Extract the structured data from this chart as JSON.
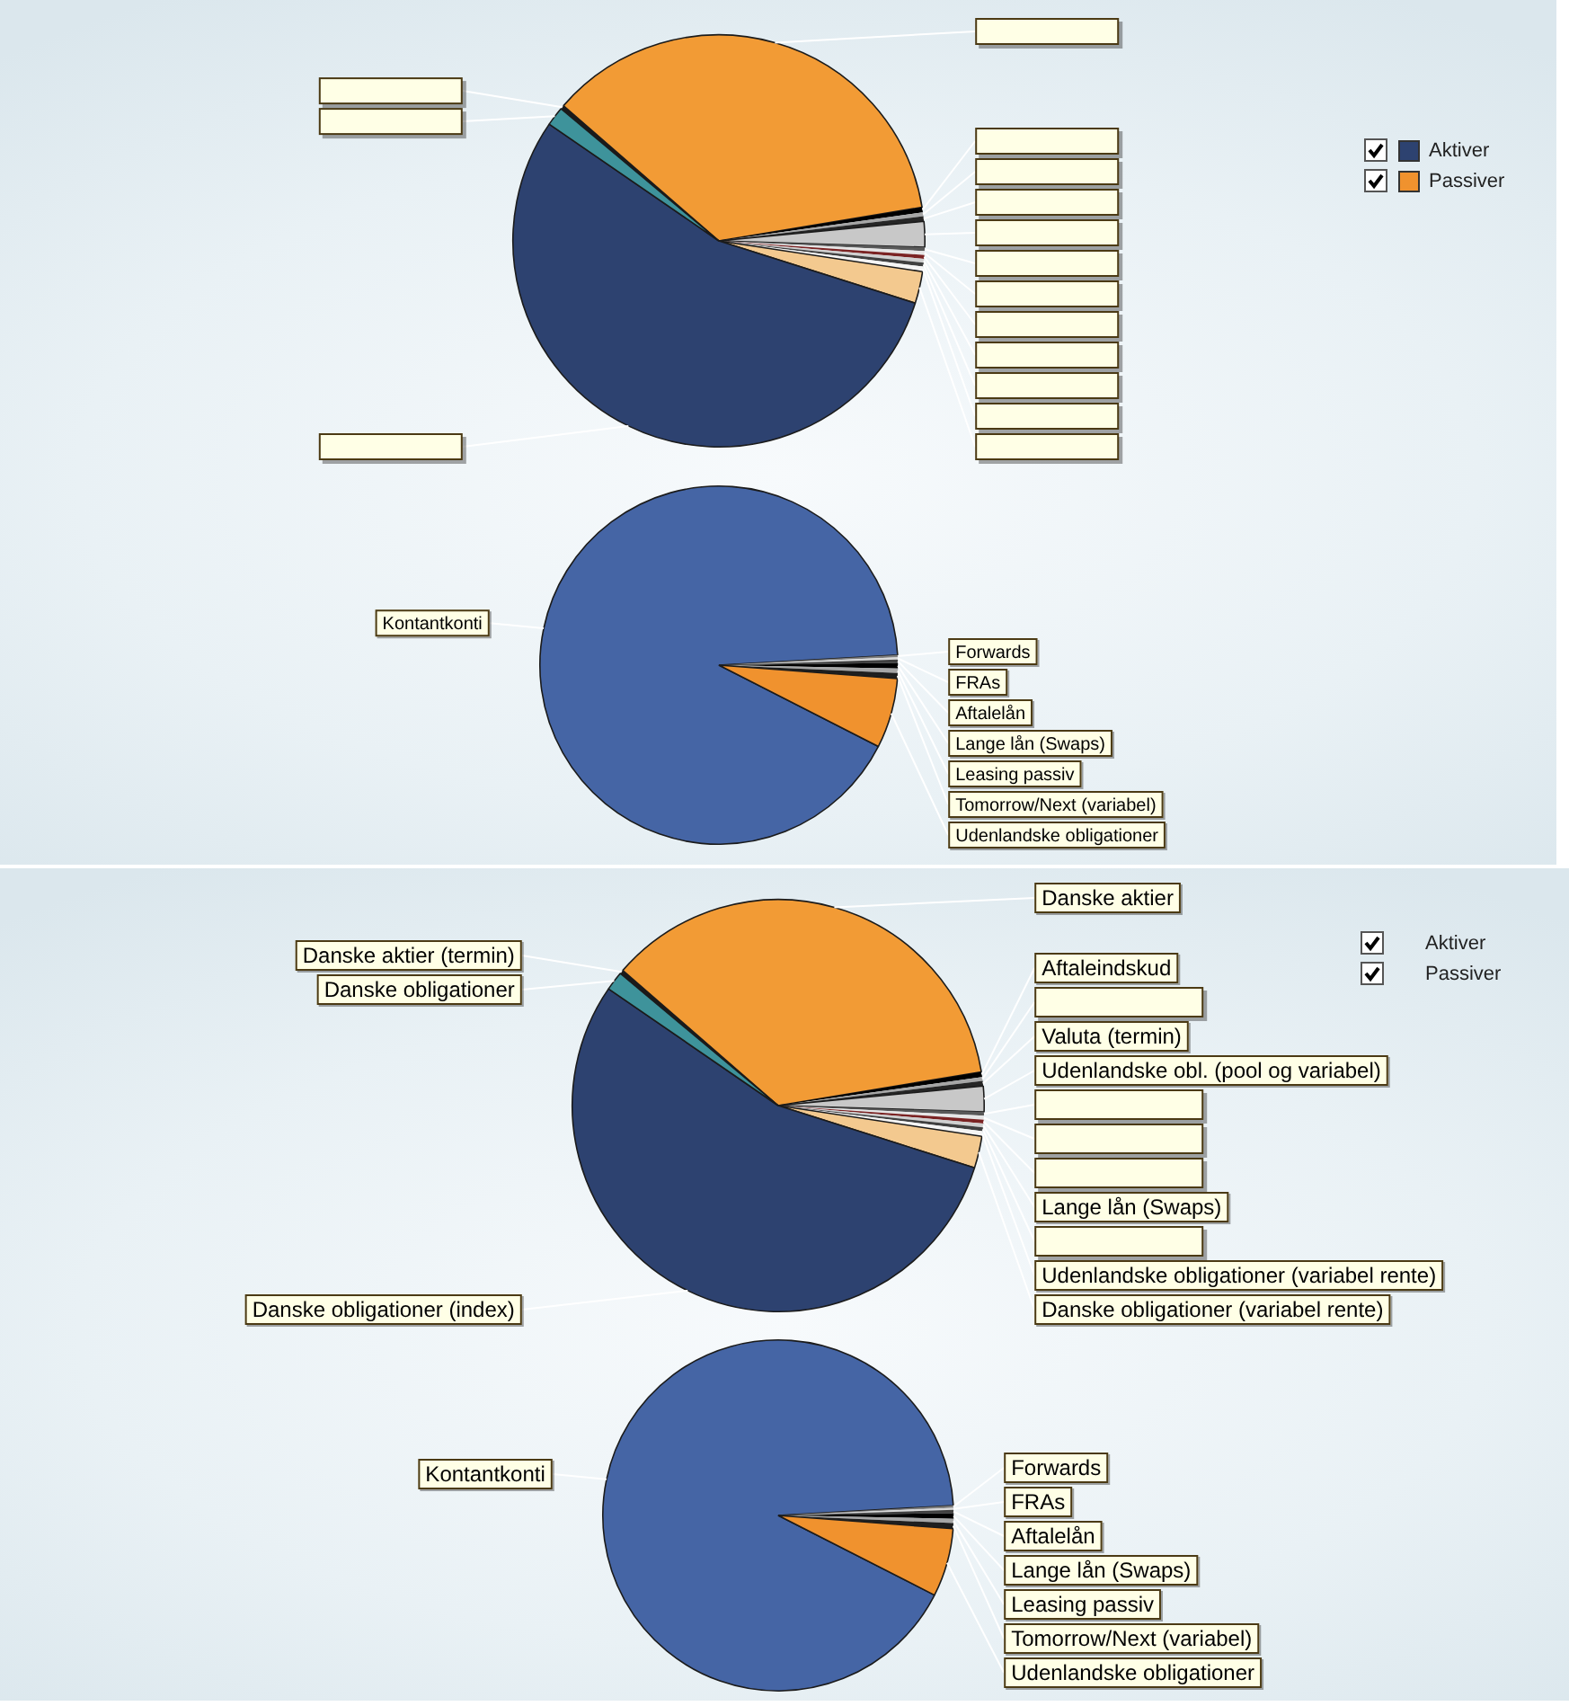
{
  "chart_data": [
    {
      "type": "pie",
      "legend": "top right",
      "categories": [
        null,
        null,
        null,
        null,
        null,
        null,
        null,
        null,
        null,
        null,
        null,
        null,
        null,
        null,
        null
      ],
      "series": [
        {
          "name": "Aktiver",
          "color": "#2d4270",
          "values": [
            36.0,
            0.4,
            0.3,
            0.4,
            2.0,
            0.3,
            0.3,
            0.3,
            0.3,
            0.3,
            0.4,
            2.5,
            54.7,
            1.5,
            0.3
          ],
          "colors": [
            "#f29b35",
            "#000000",
            "#a6a6a6",
            "#262626",
            "#c8c8c8",
            "#595959",
            "#e6e6e6",
            "#7b2323",
            "#d0d0d0",
            "#404040",
            "#f5f5f5",
            "#f3c98f",
            "#2d4270",
            "#3e939b",
            "#1a1a1a"
          ]
        }
      ]
    },
    {
      "type": "pie",
      "legend": "top right",
      "categories": [
        "Kontantkonti",
        "Forwards",
        "FRAs",
        "Aftalelån",
        "Lange lån (Swaps)",
        "Leasing passiv",
        "Tomorrow/Next (variabel)",
        "Udenlandske obligationer"
      ],
      "series": [
        {
          "name": "Passiver",
          "color": "#f0922e",
          "values": [
            91.6,
            0.2,
            0.2,
            0.3,
            0.5,
            0.4,
            0.5,
            6.3
          ],
          "colors": [
            "#4565a5",
            "#7f7f7f",
            "#d9d9d9",
            "#404040",
            "#000000",
            "#a6a6a6",
            "#1f1f1f",
            "#f0922e"
          ]
        }
      ]
    },
    {
      "type": "pie",
      "legend": "top right",
      "categories": [
        "Danske aktier",
        "Aftaleindskud",
        null,
        "Valuta (termin)",
        "Udenlandske obl. (pool og variabel)",
        null,
        null,
        null,
        "Lange lån (Swaps)",
        null,
        "Udenlandske obligationer (variabel rente)",
        "Danske obligationer (variabel rente)",
        "Danske obligationer (index)",
        "Danske obligationer",
        "Danske aktier (termin)"
      ],
      "series": [
        {
          "name": "Aktiver",
          "values": [
            36.0,
            0.4,
            0.3,
            0.4,
            2.0,
            0.3,
            0.3,
            0.3,
            0.3,
            0.3,
            0.4,
            2.5,
            54.7,
            1.5,
            0.3
          ],
          "colors": [
            "#f29b35",
            "#000000",
            "#a6a6a6",
            "#262626",
            "#c8c8c8",
            "#595959",
            "#e6e6e6",
            "#7b2323",
            "#d0d0d0",
            "#404040",
            "#f5f5f5",
            "#f3c98f",
            "#2d4270",
            "#3e939b",
            "#1a1a1a"
          ]
        }
      ]
    },
    {
      "type": "pie",
      "legend": "top right",
      "categories": [
        "Kontantkonti",
        "Forwards",
        "FRAs",
        "Aftalelån",
        "Lange lån (Swaps)",
        "Leasing passiv",
        "Tomorrow/Next (variabel)",
        "Udenlandske obligationer"
      ],
      "series": [
        {
          "name": "Passiver",
          "values": [
            91.6,
            0.2,
            0.2,
            0.3,
            0.5,
            0.4,
            0.5,
            6.3
          ],
          "colors": [
            "#4565a5",
            "#7f7f7f",
            "#d9d9d9",
            "#404040",
            "#000000",
            "#a6a6a6",
            "#1f1f1f",
            "#f0922e"
          ]
        }
      ]
    }
  ]
}
